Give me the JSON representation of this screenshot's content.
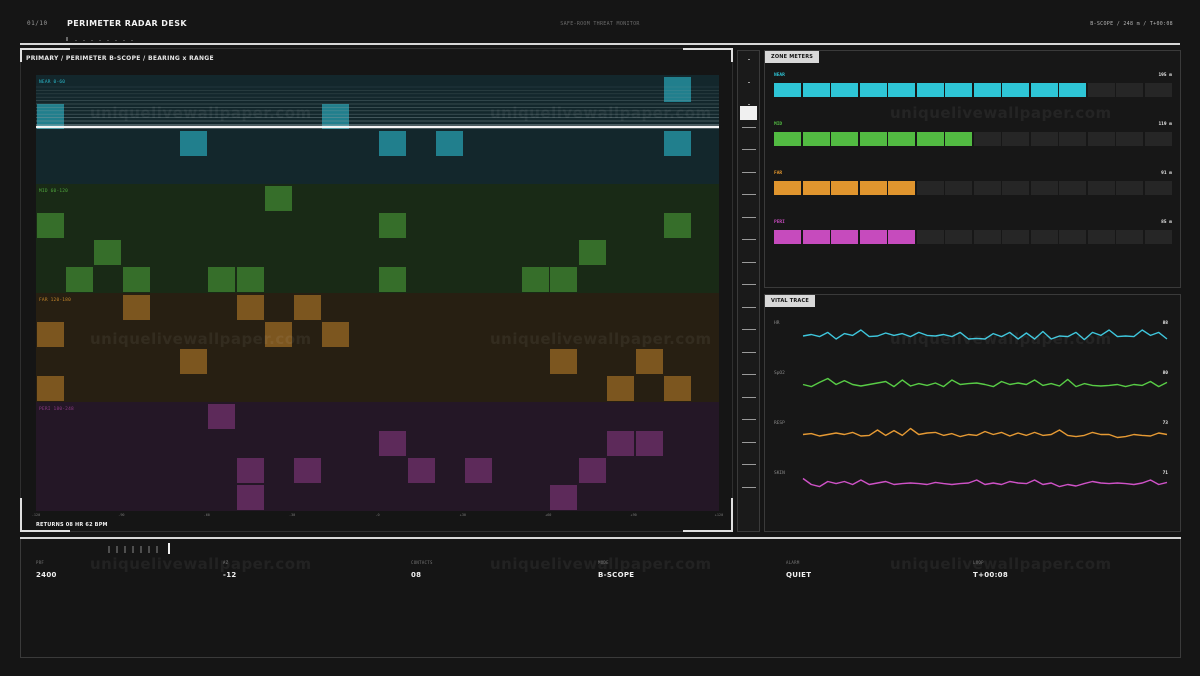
{
  "header": {
    "counter": "01/10",
    "title": "PERIMETER RADAR DESK",
    "subtitle": "SAFE-ROOM THREAT MONITOR",
    "status": "B-SCOPE  /  248 m  /  T+00:08"
  },
  "primary": {
    "breadcrumb": "PRIMARY  /  PERIMETER B-SCOPE  /  BEARING x RANGE",
    "bands": [
      {
        "label": "NEAR 0-60",
        "color": "#2ab7c9",
        "bg": "#13272c"
      },
      {
        "label": "MID 60-120",
        "color": "#4fa63d",
        "bg": "#192a16"
      },
      {
        "label": "FAR 120-180",
        "color": "#c2842a",
        "bg": "#271f12"
      },
      {
        "label": "PERI 180-248",
        "color": "#8d3a85",
        "bg": "#241726"
      }
    ],
    "contacts": [
      {
        "band": 0,
        "col": 0,
        "row": 1
      },
      {
        "band": 0,
        "col": 10,
        "row": 1
      },
      {
        "band": 0,
        "col": 22,
        "row": 0
      },
      {
        "band": 0,
        "col": 22,
        "row": 2
      },
      {
        "band": 0,
        "col": 5,
        "row": 2
      },
      {
        "band": 0,
        "col": 12,
        "row": 2
      },
      {
        "band": 0,
        "col": 14,
        "row": 2
      },
      {
        "band": 1,
        "col": 8,
        "row": 0
      },
      {
        "band": 1,
        "col": 0,
        "row": 1
      },
      {
        "band": 1,
        "col": 12,
        "row": 1
      },
      {
        "band": 1,
        "col": 22,
        "row": 1
      },
      {
        "band": 1,
        "col": 2,
        "row": 2
      },
      {
        "band": 1,
        "col": 19,
        "row": 2
      },
      {
        "band": 1,
        "col": 1,
        "row": 3
      },
      {
        "band": 1,
        "col": 3,
        "row": 3
      },
      {
        "band": 1,
        "col": 6,
        "row": 3
      },
      {
        "band": 1,
        "col": 7,
        "row": 3
      },
      {
        "band": 1,
        "col": 12,
        "row": 3
      },
      {
        "band": 1,
        "col": 17,
        "row": 3
      },
      {
        "band": 1,
        "col": 18,
        "row": 3
      },
      {
        "band": 2,
        "col": 3,
        "row": 0
      },
      {
        "band": 2,
        "col": 7,
        "row": 0
      },
      {
        "band": 2,
        "col": 9,
        "row": 0
      },
      {
        "band": 2,
        "col": 0,
        "row": 1
      },
      {
        "band": 2,
        "col": 8,
        "row": 1
      },
      {
        "band": 2,
        "col": 10,
        "row": 1
      },
      {
        "band": 2,
        "col": 5,
        "row": 2
      },
      {
        "band": 2,
        "col": 18,
        "row": 2
      },
      {
        "band": 2,
        "col": 21,
        "row": 2
      },
      {
        "band": 2,
        "col": 0,
        "row": 3
      },
      {
        "band": 2,
        "col": 20,
        "row": 3
      },
      {
        "band": 2,
        "col": 22,
        "row": 3
      },
      {
        "band": 3,
        "col": 6,
        "row": 0
      },
      {
        "band": 3,
        "col": 12,
        "row": 1
      },
      {
        "band": 3,
        "col": 20,
        "row": 1
      },
      {
        "band": 3,
        "col": 21,
        "row": 1
      },
      {
        "band": 3,
        "col": 7,
        "row": 2
      },
      {
        "band": 3,
        "col": 9,
        "row": 2
      },
      {
        "band": 3,
        "col": 13,
        "row": 2
      },
      {
        "band": 3,
        "col": 15,
        "row": 2
      },
      {
        "band": 3,
        "col": 19,
        "row": 2
      },
      {
        "band": 3,
        "col": 7,
        "row": 3
      },
      {
        "band": 3,
        "col": 18,
        "row": 3
      }
    ],
    "x_ticks": [
      "-120",
      "-90",
      "-60",
      "-30",
      "-0",
      "+30",
      "+60",
      "+90",
      "+120"
    ],
    "returns_text": "RETURNS 08    HR 62 BPM"
  },
  "zone_meters": {
    "title": "ZONE METERS",
    "rows": [
      {
        "label": "NEAR",
        "value": "195 m",
        "filled": 11,
        "color": "#2ec5d6"
      },
      {
        "label": "MID",
        "value": "119 m",
        "filled": 7,
        "color": "#52bb42"
      },
      {
        "label": "FAR",
        "value": "91 m",
        "filled": 5,
        "color": "#e0952e"
      },
      {
        "label": "PERI",
        "value": "85 m",
        "filled": 5,
        "color": "#c64bbd"
      }
    ],
    "total_segments": 14
  },
  "vital_trace": {
    "title": "VITAL TRACE",
    "traces": [
      {
        "label": "HR",
        "value": "88",
        "color": "#3ec6dc",
        "points": [
          0.6,
          0.55,
          0.62,
          0.48,
          0.7,
          0.52,
          0.58,
          0.4,
          0.62,
          0.6,
          0.5,
          0.58,
          0.52,
          0.62,
          0.48,
          0.58,
          0.6,
          0.55,
          0.62,
          0.48,
          0.7,
          0.68,
          0.7,
          0.52,
          0.62,
          0.48,
          0.7,
          0.5,
          0.7,
          0.45,
          0.7,
          0.6,
          0.62,
          0.48,
          0.72,
          0.48,
          0.58,
          0.4,
          0.62,
          0.6,
          0.62,
          0.4,
          0.58,
          0.48,
          0.7
        ]
      },
      {
        "label": "SpO2",
        "value": "80",
        "color": "#58cc46",
        "points": [
          0.55,
          0.62,
          0.48,
          0.35,
          0.55,
          0.42,
          0.55,
          0.6,
          0.55,
          0.5,
          0.45,
          0.62,
          0.4,
          0.6,
          0.52,
          0.58,
          0.5,
          0.62,
          0.4,
          0.55,
          0.52,
          0.5,
          0.55,
          0.62,
          0.45,
          0.55,
          0.5,
          0.55,
          0.4,
          0.58,
          0.52,
          0.6,
          0.38,
          0.62,
          0.52,
          0.58,
          0.6,
          0.58,
          0.55,
          0.62,
          0.55,
          0.58,
          0.45,
          0.62,
          0.48
        ]
      },
      {
        "label": "RESP",
        "value": "73",
        "color": "#e69a34",
        "points": [
          0.55,
          0.52,
          0.6,
          0.55,
          0.5,
          0.55,
          0.48,
          0.6,
          0.58,
          0.4,
          0.58,
          0.42,
          0.58,
          0.35,
          0.55,
          0.5,
          0.48,
          0.58,
          0.52,
          0.62,
          0.55,
          0.58,
          0.45,
          0.55,
          0.48,
          0.6,
          0.5,
          0.58,
          0.48,
          0.58,
          0.55,
          0.4,
          0.58,
          0.62,
          0.58,
          0.48,
          0.55,
          0.55,
          0.65,
          0.62,
          0.55,
          0.58,
          0.6,
          0.5,
          0.55
        ]
      },
      {
        "label": "SKIN",
        "value": "71",
        "color": "#cf52c7",
        "points": [
          0.35,
          0.55,
          0.62,
          0.45,
          0.52,
          0.45,
          0.55,
          0.4,
          0.55,
          0.5,
          0.45,
          0.55,
          0.52,
          0.5,
          0.52,
          0.55,
          0.48,
          0.52,
          0.55,
          0.52,
          0.5,
          0.4,
          0.55,
          0.5,
          0.55,
          0.45,
          0.5,
          0.52,
          0.4,
          0.55,
          0.5,
          0.62,
          0.55,
          0.6,
          0.52,
          0.45,
          0.5,
          0.52,
          0.5,
          0.52,
          0.55,
          0.5,
          0.4,
          0.55,
          0.48
        ]
      }
    ]
  },
  "bottom": {
    "stats": [
      {
        "label": "PRF",
        "value": "2400"
      },
      {
        "label": "AZ",
        "value": "-12"
      },
      {
        "label": "CONTACTS",
        "value": "08"
      },
      {
        "label": "MODE",
        "value": "B-SCOPE"
      },
      {
        "label": "ALARM",
        "value": "QUIET"
      },
      {
        "label": "LOOP",
        "value": "T+00:08"
      }
    ]
  },
  "watermark": "uniquelivewallpaper.com"
}
